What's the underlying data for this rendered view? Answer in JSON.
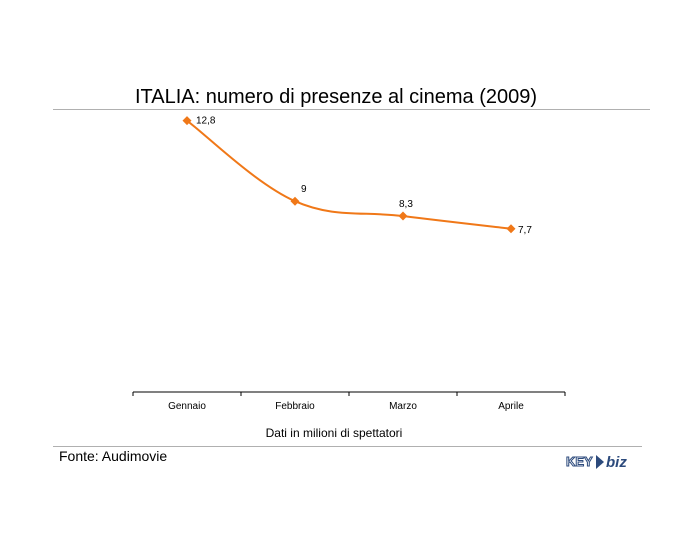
{
  "chart_data": {
    "type": "line",
    "title": "ITALIA: numero di presenze al cinema (2009)",
    "categories": [
      "Gennaio",
      "Febbraio",
      "Marzo",
      "Aprile"
    ],
    "series": [
      {
        "values": [
          12.8,
          9,
          8.3,
          7.7
        ]
      }
    ],
    "data_labels": [
      "12,8",
      "9",
      "8,3",
      "7,7"
    ],
    "xlabel": "Dati in milioni di spettatori",
    "ylabel": "",
    "ylim": [
      0,
      15
    ],
    "grid": false,
    "legend": "none",
    "color": "#f07818"
  },
  "source": "Fonte: Audimovie",
  "logo": {
    "prefix": "KEY",
    "suffix": "biz"
  }
}
